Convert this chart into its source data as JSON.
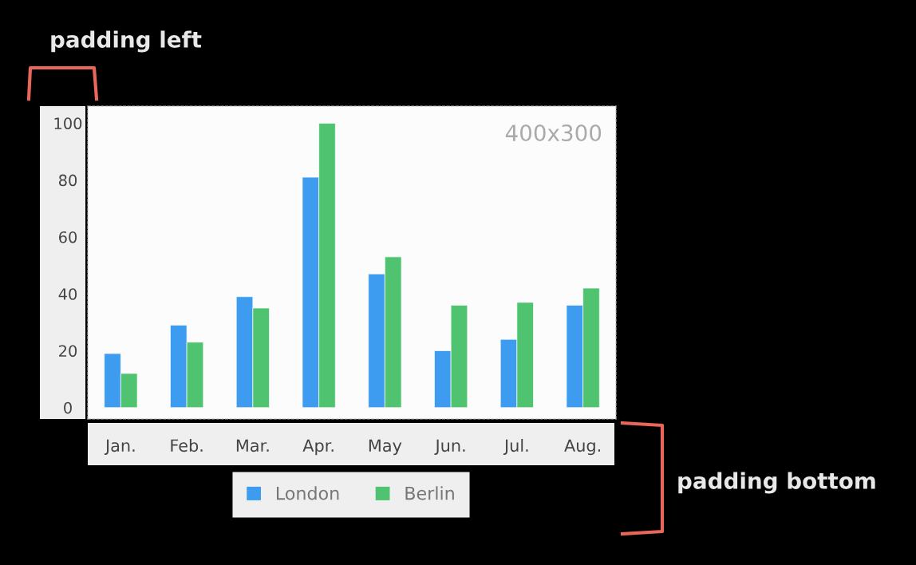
{
  "chart_data": {
    "type": "bar",
    "categories": [
      "Jan.",
      "Feb.",
      "Mar.",
      "Apr.",
      "May",
      "Jun.",
      "Jul.",
      "Aug."
    ],
    "series": [
      {
        "name": "London",
        "color": "#3d9bf0",
        "values": [
          19,
          29,
          39,
          81,
          47,
          20,
          24,
          36
        ]
      },
      {
        "name": "Berlin",
        "color": "#4fc36f",
        "values": [
          12,
          23,
          35,
          100,
          53,
          36,
          37,
          42
        ]
      }
    ],
    "ylim": [
      -4,
      106
    ],
    "yticks": [
      0,
      20,
      40,
      60,
      80,
      100
    ],
    "grid": false,
    "legend": "bottom",
    "annotations": [
      "padding left",
      "padding bottom",
      "400x300"
    ]
  }
}
